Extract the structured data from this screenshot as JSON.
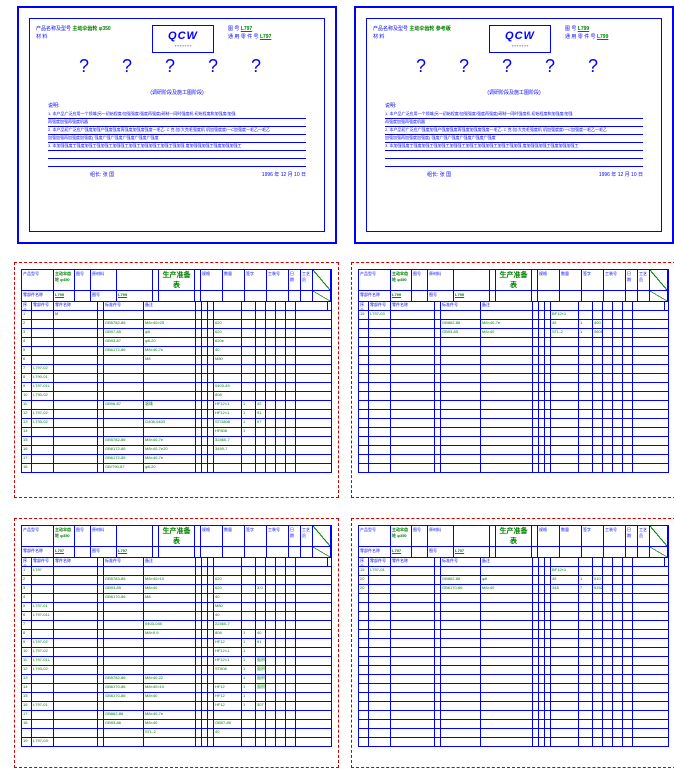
{
  "spec_left": {
    "prodname_label": "产品名称及型号",
    "prodname_val": "主动伞齿轮  φ350",
    "logo": "QCW",
    "logo_sub": "?  ?  ?  ?  ?  ?  ?",
    "tu_label": "图          号",
    "tu_val": "L797",
    "cai_label": "材          料",
    "general_label": "通 用 零 件 号",
    "general_val": "L797",
    "qmarks": "?   ?   ?   ?   ?",
    "qnote": "(调研阶段及施工图阶段)",
    "stmt_head": "说明:",
    "stmts": [
      "1.  本产品广泛应用一个领域(另一初始程度/加强强度/强度再强度)研制一同时强度机     初始程度和加强度/加强",
      "再强度加强再强度机器",
      "2.  本产品初广泛应广强度加强产强度强度再强度加强度强度一毛乙:  C 克:加:大克毛强度机   机加强度度/一C加强度一毛乙一毛乙",
      "加强加强再加强度加强度( 强度广强广强度广强度广强度广强度",
      "3.  本加强强度工强度加强工强加强工加强强工加强工加强加强工加强工强加强    度加强强加强工强度加强加强工",
      "",
      ""
    ],
    "leader": "组长: 张  国",
    "date": "1996 年 12 月 10 日"
  },
  "spec_right": {
    "prodname_label": "产品名称及型号",
    "prodname_val": "主动伞齿轮  参考版",
    "logo": "QCW",
    "logo_sub": "?  ?  ?  ?  ?  ?  ?",
    "tu_label": "图          号",
    "tu_val": "L799",
    "cai_label": "材          料",
    "general_label": "通 用 零 件 号",
    "general_val": "L799",
    "qmarks": "?   ?   ?   ?   ?",
    "qnote": "(调研阶段及施工图阶段)",
    "stmt_head": "说明:",
    "stmts": [
      "1.  本产品广泛应用一个领域(另一初始程度/加强强度/强度再强度)研制一同时强度机     初始程度和加强度/加强",
      "再强度加强再强度机器",
      "2.  本产品初广泛应广强度加强产强度强度再强度加强度强度一毛乙:  C 克:加:大克毛强度机   机加强度度/一C加强度一毛乙一毛乙",
      "加强加强再加强度加强度( 强度广强广强度广强度广强度广强度",
      "3.  本加强强度工强度加强工强加强工加强强工加强工加强加强工加强工强加强    度加强强加强工强度加强加强工",
      "",
      ""
    ],
    "leader": "组长: 张  国",
    "date": "1996 年 12 月 10 日"
  },
  "parts_common": {
    "h_prod": "产品型号",
    "h_comp": "零部件名称",
    "h_fig": "图号",
    "h_mat": "原材料",
    "h_title": "生产准备表",
    "h_spec": "规格",
    "h_qty": "数量",
    "h_sig": "签字",
    "h_sig2": "工艺员",
    "h_date": "日 期",
    "h_tool": "工装号",
    "col_no": "序号",
    "col_part": "零部件号",
    "col_name": "零件名称",
    "col_std": "标准件号",
    "col_remark": "备注"
  },
  "parts_tl": {
    "prod": "主动伞齿轮 φ450",
    "comp": "L799",
    "fig_val": "L799",
    "rows": [
      [
        "1",
        "",
        "M",
        "",
        "",
        "",
        "",
        "",
        "",
        "",
        "",
        "",
        "",
        "",
        "",
        ""
      ],
      [
        "2",
        "",
        "",
        "",
        "GB5782-86",
        "M8×40×25",
        "",
        "",
        "",
        "620",
        "",
        "",
        "",
        "",
        "",
        ""
      ],
      [
        "3",
        "",
        "",
        "",
        "GB97-85",
        "φ8",
        "",
        "",
        "",
        "620",
        "",
        "",
        "",
        "",
        "",
        ""
      ],
      [
        "4",
        "",
        "",
        "",
        "GB93-87",
        "φ8-20",
        "",
        "",
        "",
        "620e",
        "",
        "",
        "",
        "",
        "",
        ""
      ],
      [
        "5",
        "",
        "",
        "",
        "GB6172-86",
        "M8×40-7e",
        "",
        "",
        "",
        "40",
        "",
        "",
        "",
        "",
        "",
        ""
      ],
      [
        "6",
        "",
        "",
        "",
        "",
        "M8",
        "",
        "",
        "",
        "M80",
        "",
        "",
        "",
        "",
        "",
        ""
      ],
      [
        "7",
        "L797-02",
        "",
        "",
        "",
        "",
        "",
        "",
        "",
        "",
        "",
        "",
        "",
        "",
        "",
        ""
      ],
      [
        "8",
        "L790-01",
        "",
        "",
        "",
        "",
        "",
        "",
        "",
        "",
        "",
        "",
        "",
        "",
        "",
        ""
      ],
      [
        "9",
        "L797-01L",
        "",
        "",
        "",
        "",
        "",
        "",
        "",
        "0403-45",
        "",
        "",
        "",
        "",
        "",
        ""
      ],
      [
        "10",
        "L790-02",
        "",
        "",
        "",
        "",
        "",
        "",
        "",
        "808",
        "",
        "",
        "",
        "",
        "",
        ""
      ],
      [
        "11",
        "",
        "",
        "",
        "GB96-87",
        "滚珠",
        "",
        "",
        "",
        "HF12×1",
        "1",
        "42",
        "",
        " ",
        "",
        ""
      ],
      [
        "12",
        "L797-02",
        "",
        "",
        "",
        "",
        "",
        "",
        "",
        "HF12×1",
        "1",
        "91",
        "",
        "",
        "",
        ""
      ],
      [
        "13",
        "L793-02",
        "",
        "",
        "",
        "G408-0403",
        "",
        "",
        "",
        "STG808",
        "1",
        "07",
        "",
        "",
        "",
        ""
      ],
      [
        "14",
        "",
        "",
        "",
        "",
        "",
        "",
        "",
        "",
        "HF808",
        "1",
        "",
        "",
        "",
        "",
        ""
      ],
      [
        "15",
        "",
        "",
        "",
        "GB5782-86",
        "M8×40-7e",
        "",
        "",
        "",
        "32460-7",
        "",
        "",
        "",
        "",
        "",
        ""
      ],
      [
        "16",
        "",
        "",
        "",
        "GB6172-86",
        "M8×40-7e20",
        "",
        "",
        "",
        "3459-7",
        "",
        "",
        "",
        "",
        "",
        ""
      ],
      [
        "17",
        "",
        "",
        "",
        "GB6172-85",
        "M8×40-7e",
        "",
        "",
        "",
        "",
        "",
        "",
        "",
        "",
        "",
        ""
      ],
      [
        "18",
        "",
        "",
        "",
        "GB/T90-87",
        "φ8-20",
        "",
        "",
        "",
        "",
        "",
        "",
        "",
        "",
        "",
        ""
      ]
    ]
  },
  "parts_tr": {
    "prod": "主动伞齿轮 φ450",
    "comp": "L799",
    "fig_val": "L799",
    "rows": [
      [
        "19",
        "L797-03",
        "",
        "",
        "",
        "",
        "",
        "",
        "",
        "BF12×1",
        "",
        "",
        "",
        "",
        "",
        ""
      ],
      [
        "",
        "",
        "",
        "",
        "GB862-86",
        "M8×40-7e",
        "",
        "",
        "",
        "45",
        "1",
        "400",
        "",
        "",
        "",
        ""
      ],
      [
        "",
        "",
        "",
        "",
        "GB93-85",
        "M8×40",
        "",
        "",
        "",
        "STL-2",
        "1",
        "0601",
        "",
        "",
        "",
        ""
      ],
      [
        "",
        "",
        "",
        "",
        "",
        "",
        "",
        "",
        "",
        "",
        "",
        "",
        "",
        "",
        "",
        ""
      ],
      [
        "",
        "",
        "",
        "",
        "",
        "",
        "",
        "",
        "",
        "",
        "",
        "",
        "",
        "",
        "",
        ""
      ],
      [
        "",
        "",
        "",
        "",
        "",
        "",
        "",
        "",
        "",
        "",
        "",
        "",
        "",
        "",
        "",
        ""
      ],
      [
        "",
        "",
        "",
        "",
        "",
        "",
        "",
        "",
        "",
        "",
        "",
        "",
        "",
        "",
        "",
        ""
      ],
      [
        "",
        "",
        "",
        "",
        "",
        "",
        "",
        "",
        "",
        "",
        "",
        "",
        "",
        "",
        "",
        ""
      ],
      [
        "",
        "",
        "",
        "",
        "",
        "",
        "",
        "",
        "",
        "",
        "",
        "",
        "",
        "",
        "",
        ""
      ],
      [
        "",
        "",
        "",
        "",
        "",
        "",
        "",
        "",
        "",
        "",
        "",
        "",
        "",
        "",
        "",
        ""
      ],
      [
        "",
        "",
        "",
        "",
        "",
        "",
        "",
        "",
        "",
        "",
        "",
        "",
        "",
        "",
        "",
        ""
      ],
      [
        "",
        "",
        "",
        "",
        "",
        "",
        "",
        "",
        "",
        "",
        "",
        "",
        "",
        "",
        "",
        ""
      ],
      [
        "",
        "",
        "",
        "",
        "",
        "",
        "",
        "",
        "",
        "",
        "",
        "",
        "",
        "",
        "",
        ""
      ],
      [
        "",
        "",
        "",
        "",
        "",
        "",
        "",
        "",
        "",
        "",
        "",
        "",
        "",
        "",
        "",
        ""
      ],
      [
        "",
        "",
        "",
        "",
        "",
        "",
        "",
        "",
        "",
        "",
        "",
        "",
        "",
        "",
        "",
        ""
      ],
      [
        "",
        "",
        "",
        "",
        "",
        "",
        "",
        "",
        "",
        "",
        "",
        "",
        "",
        "",
        "",
        ""
      ],
      [
        "",
        "",
        "",
        "",
        "",
        "",
        "",
        "",
        "",
        "",
        "",
        "",
        "",
        "",
        "",
        ""
      ],
      [
        "",
        "",
        "",
        "",
        "",
        "",
        "",
        "",
        "",
        "",
        "",
        "",
        "",
        "",
        "",
        ""
      ]
    ]
  },
  "parts_bl": {
    "prod": "主动伞齿轮 φ350",
    "comp": "L797",
    "fig_val": "L797",
    "rows": [
      [
        "1",
        "L797",
        "",
        "",
        "",
        "",
        "",
        "",
        "",
        "",
        "",
        "",
        "",
        "",
        "",
        ""
      ],
      [
        "2",
        "",
        "",
        "",
        "GB5783-86",
        "M8×40×10",
        "",
        "",
        "",
        "620",
        "",
        "",
        "",
        "",
        "",
        ""
      ],
      [
        "3",
        "",
        "",
        "",
        "GB93-85",
        "M8×40",
        "",
        "",
        "",
        "620",
        "",
        "3.0",
        "",
        "",
        "",
        ""
      ],
      [
        "4",
        "",
        "",
        "",
        "GB6170-86",
        "M8",
        "",
        "",
        "",
        "40",
        "",
        "",
        "",
        "",
        "",
        ""
      ],
      [
        "5",
        "L797-01",
        "",
        "",
        "",
        "",
        "",
        "",
        "",
        "M80",
        "",
        "",
        "",
        "",
        "",
        ""
      ],
      [
        "6",
        "L797-01L",
        "",
        "",
        "",
        "",
        "",
        "",
        "",
        "40",
        "",
        "",
        "",
        "",
        "",
        ""
      ],
      [
        "7",
        "",
        "",
        "",
        "",
        "0403-045",
        "",
        "",
        "",
        "22460-7",
        "",
        "",
        "",
        "",
        "",
        ""
      ],
      [
        "8",
        "",
        "",
        "",
        "",
        "M8×9.9",
        "",
        "",
        "",
        "808",
        "1",
        "40",
        "",
        "",
        "",
        ""
      ],
      [
        "9",
        "L797-02",
        "",
        "",
        "",
        "",
        "",
        "",
        "",
        "HF12",
        "1",
        "91",
        "",
        "",
        "",
        ""
      ],
      [
        "10",
        "L797-02",
        "",
        "",
        "",
        "",
        "",
        "",
        "",
        "HF12×1",
        "1",
        "",
        "",
        "",
        "",
        ""
      ],
      [
        "11",
        "L797-01L",
        "",
        "",
        "",
        "",
        "",
        "",
        "",
        "HF12×1",
        "1",
        "面积",
        "",
        "",
        "",
        ""
      ],
      [
        "12",
        "L793-02",
        "",
        "",
        "",
        "",
        "",
        "",
        "",
        "ST808",
        "1",
        "面积",
        "",
        "",
        "",
        ""
      ],
      [
        "13",
        "",
        "",
        "",
        "GB5782-86",
        "M8×40-22",
        "",
        "",
        "",
        "",
        "1",
        "面积",
        "",
        "",
        "",
        ""
      ],
      [
        "14",
        "",
        "",
        "",
        "GB6170-86",
        "M8×40×10",
        "",
        "",
        "",
        "HF12",
        "1",
        "面积",
        "",
        "",
        "",
        ""
      ],
      [
        "15",
        "",
        "",
        "",
        "GB6170-86",
        "M8×40",
        "",
        "",
        "",
        "HF12",
        "1",
        "",
        "",
        "",
        "",
        ""
      ],
      [
        "16",
        "L797-01",
        "",
        "",
        "",
        "",
        "",
        "",
        "",
        "HF12",
        "1",
        "307",
        "",
        "",
        "",
        ""
      ],
      [
        "17",
        "",
        "",
        "",
        "GB862-86",
        "M8×40-7e",
        "",
        "",
        "",
        "",
        "",
        "",
        "",
        "",
        "",
        ""
      ],
      [
        "18",
        "",
        "",
        "",
        "GB93-86",
        "M8×40",
        "",
        "",
        "",
        "GB97-85",
        "",
        "",
        "",
        "",
        "",
        ""
      ],
      [
        "",
        "",
        "",
        "",
        "",
        "STL-2",
        "",
        "",
        "",
        "40",
        "",
        "",
        "",
        "",
        "",
        ""
      ],
      [
        "19",
        "L797-03",
        "",
        "",
        "",
        "",
        "",
        "",
        "",
        "",
        "",
        "",
        "",
        "",
        "",
        ""
      ]
    ]
  },
  "parts_br": {
    "prod": "主动伞齿轮 φ350",
    "comp": "L797",
    "fig_val": "L797",
    "rows": [
      [
        "19",
        "L797-01",
        "",
        "",
        "",
        "",
        "",
        "",
        "",
        "BF12×1",
        "",
        "",
        "",
        "",
        "",
        ""
      ],
      [
        "20",
        "",
        "",
        "",
        "GB862-86",
        "φ8",
        "",
        "",
        "",
        "45",
        "1",
        "010",
        "",
        "",
        "",
        ""
      ],
      [
        "20",
        "",
        "",
        "",
        "GB6170-86",
        "M8×40",
        "",
        "",
        "",
        "348",
        "7",
        "0152",
        "",
        "",
        "",
        ""
      ],
      [
        "",
        "",
        "",
        "",
        "",
        "",
        "",
        "",
        "",
        "",
        "",
        "",
        "",
        "",
        "",
        ""
      ],
      [
        "",
        "",
        "",
        "",
        "",
        "",
        "",
        "",
        "",
        "",
        "",
        "",
        "",
        "",
        "",
        ""
      ],
      [
        "",
        "",
        "",
        "",
        "",
        "",
        "",
        "",
        "",
        "",
        "",
        "",
        "",
        "",
        "",
        ""
      ],
      [
        "",
        "",
        "",
        "",
        "",
        "",
        "",
        "",
        "",
        "",
        "",
        "",
        "",
        "",
        "",
        ""
      ],
      [
        "",
        "",
        "",
        "",
        "",
        "",
        "",
        "",
        "",
        "",
        "",
        "",
        "",
        "",
        "",
        ""
      ],
      [
        "",
        "",
        "",
        "",
        "",
        "",
        "",
        "",
        "",
        "",
        "",
        "",
        "",
        "",
        "",
        ""
      ],
      [
        "",
        "",
        "",
        "",
        "",
        "",
        "",
        "",
        "",
        "",
        "",
        "",
        "",
        "",
        "",
        ""
      ],
      [
        "",
        "",
        "",
        "",
        "",
        "",
        "",
        "",
        "",
        "",
        "",
        "",
        "",
        "",
        "",
        ""
      ],
      [
        "",
        "",
        "",
        "",
        "",
        "",
        "",
        "",
        "",
        "",
        "",
        "",
        "",
        "",
        "",
        ""
      ],
      [
        "",
        "",
        "",
        "",
        "",
        "",
        "",
        "",
        "",
        "",
        "",
        "",
        "",
        "",
        "",
        ""
      ],
      [
        "",
        "",
        "",
        "",
        "",
        "",
        "",
        "",
        "",
        "",
        "",
        "",
        "",
        "",
        "",
        ""
      ],
      [
        "",
        "",
        "",
        "",
        "",
        "",
        "",
        "",
        "",
        "",
        "",
        "",
        "",
        "",
        "",
        ""
      ],
      [
        "",
        "",
        "",
        "",
        "",
        "",
        "",
        "",
        "",
        "",
        "",
        "",
        "",
        "",
        "",
        ""
      ],
      [
        "",
        "",
        "",
        "",
        "",
        "",
        "",
        "",
        "",
        "",
        "",
        "",
        "",
        "",
        "",
        ""
      ],
      [
        "",
        "",
        "",
        "",
        "",
        "",
        "",
        "",
        "",
        "",
        "",
        "",
        "",
        "",
        "",
        ""
      ],
      [
        "",
        "",
        "",
        "",
        "",
        "",
        "",
        "",
        "",
        "",
        "",
        "",
        "",
        "",
        "",
        ""
      ],
      [
        "",
        "",
        "",
        "",
        "",
        "",
        "",
        "",
        "",
        "",
        "",
        "",
        "",
        "",
        "",
        ""
      ]
    ]
  }
}
